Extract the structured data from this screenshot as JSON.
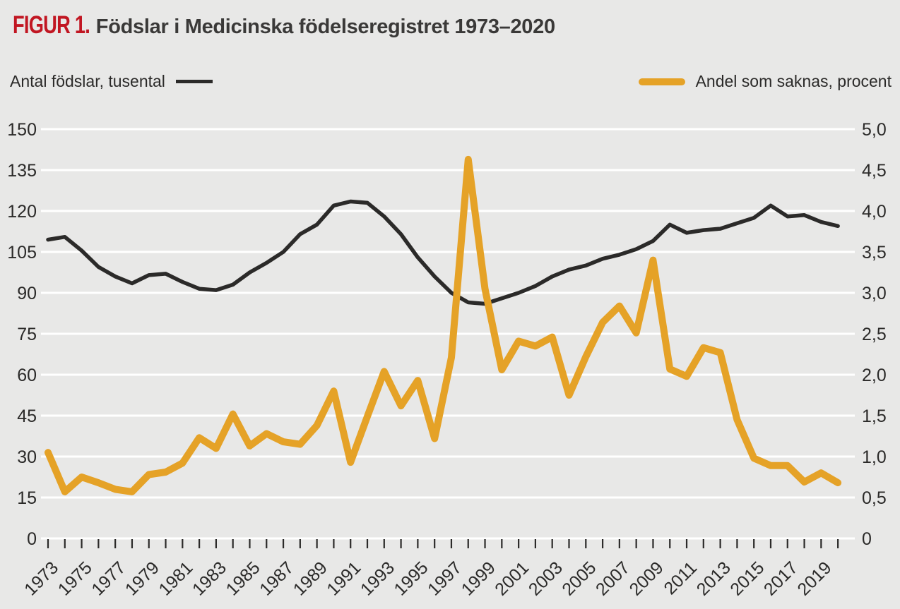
{
  "figure": {
    "label": "FIGUR 1.",
    "title": "Födslar i Medicinska födelseregistret 1973–2020"
  },
  "legend": {
    "left": {
      "label": "Antal födslar, tusental"
    },
    "right": {
      "label": "Andel som saknas, procent"
    }
  },
  "colors": {
    "background": "#e8e8e7",
    "figure_label_red": "#c11622",
    "births_line": "#2b2a29",
    "missing_line": "#e5a227",
    "gridline": "#ffffff"
  },
  "chart_data": {
    "type": "line",
    "title": "Födslar i Medicinska födelseregistret 1973–2020",
    "grid": "horizontal-white",
    "legend_position": "top",
    "years": [
      1973,
      1974,
      1975,
      1976,
      1977,
      1978,
      1979,
      1980,
      1981,
      1982,
      1983,
      1984,
      1985,
      1986,
      1987,
      1988,
      1989,
      1990,
      1991,
      1992,
      1993,
      1994,
      1995,
      1996,
      1997,
      1998,
      1999,
      2000,
      2001,
      2002,
      2003,
      2004,
      2005,
      2006,
      2007,
      2008,
      2009,
      2010,
      2011,
      2012,
      2013,
      2014,
      2015,
      2016,
      2017,
      2018,
      2019,
      2020
    ],
    "x_tick_labels": [
      1973,
      1975,
      1977,
      1979,
      1981,
      1983,
      1985,
      1987,
      1989,
      1991,
      1993,
      1995,
      1997,
      1999,
      2001,
      2003,
      2005,
      2007,
      2009,
      2011,
      2013,
      2015,
      2017,
      2019
    ],
    "left_axis": {
      "label": "Antal födslar, tusental",
      "min": 0,
      "max": 150,
      "step": 15,
      "tick_labels": [
        "0",
        "15",
        "30",
        "45",
        "60",
        "75",
        "90",
        "105",
        "120",
        "135",
        "150"
      ]
    },
    "right_axis": {
      "label": "Andel som saknas, procent",
      "min": 0,
      "max": 5,
      "step": 0.5,
      "tick_labels": [
        "0",
        "0,5",
        "1,0",
        "1,5",
        "2,0",
        "2,5",
        "3,0",
        "3,5",
        "4,0",
        "4,5",
        "5,0"
      ]
    },
    "series": [
      {
        "name": "Antal födslar, tusental",
        "axis": "left",
        "color": "#2b2a29",
        "data_name": "births-line",
        "values": [
          109.5,
          110.5,
          105.5,
          99.5,
          96,
          93.5,
          96.5,
          97,
          94,
          91.5,
          91,
          93,
          97.5,
          101,
          105,
          111.5,
          115,
          122,
          123.5,
          123,
          118,
          111.5,
          103,
          96,
          90,
          86.5,
          86,
          88,
          90,
          92.5,
          96,
          98.5,
          100,
          102.5,
          104,
          106,
          109,
          115,
          112,
          113,
          113.5,
          115.5,
          117.5,
          122,
          118,
          118.5,
          116,
          114.5
        ]
      },
      {
        "name": "Andel som saknas, procent",
        "axis": "right",
        "color": "#e5a227",
        "data_name": "missing-share-line",
        "values": [
          1.05,
          0.57,
          0.75,
          0.68,
          0.6,
          0.57,
          0.78,
          0.81,
          0.92,
          1.23,
          1.1,
          1.52,
          1.13,
          1.28,
          1.18,
          1.15,
          1.38,
          1.8,
          0.93,
          1.49,
          2.04,
          1.62,
          1.93,
          1.22,
          2.21,
          4.63,
          3.05,
          2.06,
          2.41,
          2.35,
          2.46,
          1.75,
          2.22,
          2.64,
          2.84,
          2.51,
          3.4,
          2.07,
          1.98,
          2.33,
          2.27,
          1.45,
          0.98,
          0.89,
          0.89,
          0.69,
          0.8,
          0.68
        ]
      }
    ]
  }
}
